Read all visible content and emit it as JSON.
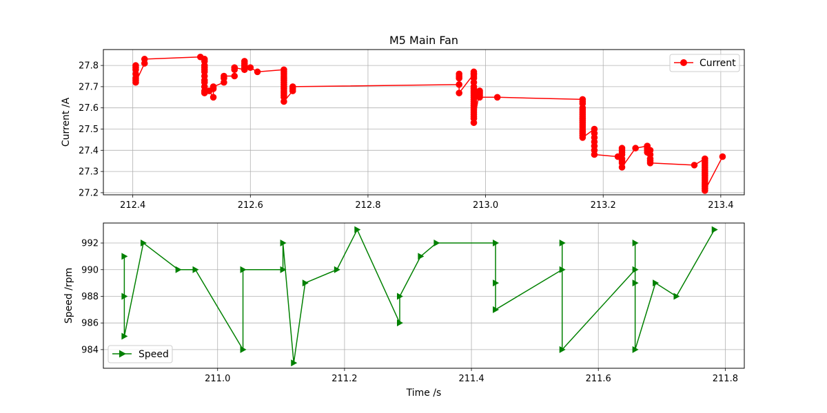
{
  "chart_data": [
    {
      "type": "line",
      "title": "M5 Main Fan",
      "xlabel": "",
      "ylabel": "Current /A",
      "xlim": [
        212.35,
        213.44
      ],
      "ylim": [
        27.19,
        27.875
      ],
      "xticks": [
        212.4,
        212.6,
        212.8,
        213.0,
        213.2,
        213.4
      ],
      "xtick_labels": [
        "212.4",
        "212.6",
        "212.8",
        "213.0",
        "213.2",
        "213.4"
      ],
      "yticks": [
        27.2,
        27.3,
        27.4,
        27.5,
        27.6,
        27.7,
        27.8
      ],
      "ytick_labels": [
        "27.2",
        "27.3",
        "27.4",
        "27.5",
        "27.6",
        "27.7",
        "27.8"
      ],
      "grid": true,
      "legend_position": "top-right",
      "series": [
        {
          "name": "Current",
          "color": "#ff0000",
          "marker": "circle",
          "x": [
            212.405,
            212.405,
            212.405,
            212.405,
            212.405,
            212.405,
            212.405,
            212.42,
            212.42,
            212.515,
            212.522,
            212.522,
            212.522,
            212.522,
            212.522,
            212.522,
            212.522,
            212.522,
            212.522,
            212.522,
            212.522,
            212.522,
            212.53,
            212.537,
            212.537,
            212.537,
            212.555,
            212.555,
            212.555,
            212.573,
            212.573,
            212.573,
            212.59,
            212.59,
            212.59,
            212.59,
            212.59,
            212.6,
            212.612,
            212.657,
            212.657,
            212.657,
            212.657,
            212.657,
            212.657,
            212.657,
            212.657,
            212.657,
            212.657,
            212.657,
            212.657,
            212.657,
            212.657,
            212.657,
            212.672,
            212.672,
            212.672,
            212.955,
            212.955,
            212.955,
            212.955,
            212.955,
            212.98,
            212.98,
            212.98,
            212.98,
            212.98,
            212.98,
            212.98,
            212.98,
            212.98,
            212.98,
            212.98,
            212.98,
            212.98,
            212.98,
            212.98,
            212.98,
            212.98,
            212.98,
            212.98,
            212.98,
            212.98,
            212.98,
            212.98,
            212.99,
            212.99,
            212.99,
            212.99,
            213.02,
            213.165,
            213.165,
            213.165,
            213.165,
            213.165,
            213.165,
            213.165,
            213.165,
            213.165,
            213.165,
            213.165,
            213.165,
            213.165,
            213.165,
            213.165,
            213.165,
            213.165,
            213.165,
            213.185,
            213.185,
            213.185,
            213.185,
            213.185,
            213.185,
            213.185,
            213.225,
            213.232,
            213.232,
            213.232,
            213.232,
            213.232,
            213.232,
            213.232,
            213.232,
            213.255,
            213.275,
            213.275,
            213.275,
            213.275,
            213.275,
            213.275,
            213.28,
            213.28,
            213.28,
            213.28,
            213.28,
            213.355,
            213.373,
            213.373,
            213.373,
            213.373,
            213.373,
            213.373,
            213.373,
            213.373,
            213.373,
            213.373,
            213.373,
            213.373,
            213.373,
            213.373,
            213.373,
            213.373,
            213.403
          ],
          "y": [
            27.8,
            27.79,
            27.78,
            27.76,
            27.74,
            27.73,
            27.72,
            27.81,
            27.83,
            27.84,
            27.83,
            27.82,
            27.8,
            27.79,
            27.78,
            27.77,
            27.75,
            27.73,
            27.72,
            27.7,
            27.68,
            27.67,
            27.68,
            27.65,
            27.69,
            27.7,
            27.72,
            27.74,
            27.75,
            27.75,
            27.78,
            27.79,
            27.78,
            27.8,
            27.81,
            27.82,
            27.79,
            27.79,
            27.77,
            27.78,
            27.77,
            27.76,
            27.75,
            27.74,
            27.73,
            27.72,
            27.71,
            27.7,
            27.69,
            27.68,
            27.67,
            27.66,
            27.65,
            27.63,
            27.68,
            27.69,
            27.7,
            27.71,
            27.76,
            27.75,
            27.74,
            27.67,
            27.76,
            27.77,
            27.76,
            27.75,
            27.74,
            27.72,
            27.7,
            27.69,
            27.68,
            27.67,
            27.66,
            27.65,
            27.64,
            27.63,
            27.62,
            27.61,
            27.6,
            27.59,
            27.58,
            27.57,
            27.56,
            27.55,
            27.53,
            27.68,
            27.67,
            27.66,
            27.65,
            27.65,
            27.64,
            27.63,
            27.62,
            27.6,
            27.59,
            27.58,
            27.57,
            27.56,
            27.55,
            27.54,
            27.53,
            27.52,
            27.51,
            27.5,
            27.49,
            27.48,
            27.47,
            27.46,
            27.5,
            27.48,
            27.46,
            27.44,
            27.42,
            27.4,
            27.38,
            27.37,
            27.41,
            27.4,
            27.39,
            27.38,
            27.36,
            27.35,
            27.34,
            27.32,
            27.41,
            27.42,
            27.41,
            27.4,
            27.39,
            27.42,
            27.41,
            27.4,
            27.38,
            27.36,
            27.35,
            27.34,
            27.33,
            27.36,
            27.35,
            27.34,
            27.33,
            27.32,
            27.31,
            27.3,
            27.29,
            27.28,
            27.27,
            27.26,
            27.25,
            27.24,
            27.23,
            27.22,
            27.21,
            27.37
          ]
        }
      ]
    },
    {
      "type": "line",
      "title": "",
      "xlabel": "Time /s",
      "ylabel": "Speed /rpm",
      "xlim": [
        210.82,
        211.83
      ],
      "ylim": [
        982.6,
        993.5
      ],
      "xticks": [
        211.0,
        211.2,
        211.4,
        211.6,
        211.8
      ],
      "xtick_labels": [
        "211.0",
        "211.2",
        "211.4",
        "211.6",
        "211.8"
      ],
      "yticks": [
        984,
        986,
        988,
        990,
        992
      ],
      "ytick_labels": [
        "984",
        "986",
        "988",
        "990",
        "992"
      ],
      "grid": true,
      "legend_position": "bottom-left",
      "series": [
        {
          "name": "Speed",
          "color": "#008000",
          "marker": "triangle-right",
          "x": [
            210.853,
            210.853,
            210.853,
            210.883,
            210.938,
            210.965,
            211.04,
            211.04,
            211.103,
            211.103,
            211.12,
            211.138,
            211.188,
            211.22,
            211.287,
            211.287,
            211.32,
            211.345,
            211.438,
            211.438,
            211.438,
            211.543,
            211.543,
            211.543,
            211.658,
            211.658,
            211.658,
            211.658,
            211.69,
            211.723,
            211.783
          ],
          "y": [
            991,
            988,
            985,
            992,
            990,
            990,
            984,
            990,
            990,
            992,
            983,
            989,
            990,
            993,
            986,
            988,
            991,
            992,
            992,
            989,
            987,
            990,
            992,
            984,
            990,
            992,
            989,
            984,
            989,
            988,
            993
          ]
        }
      ]
    }
  ]
}
